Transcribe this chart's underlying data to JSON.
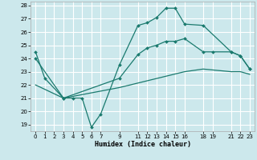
{
  "xlabel": "Humidex (Indice chaleur)",
  "bg_color": "#cce8ec",
  "grid_color": "#ffffff",
  "line_color": "#1a7a6e",
  "line1_x": [
    0,
    1,
    3,
    4,
    5,
    6,
    7,
    9,
    11,
    12,
    13,
    14,
    15,
    16,
    18,
    21,
    22,
    23
  ],
  "line1_y": [
    24.5,
    22.5,
    21.0,
    21.0,
    21.0,
    18.8,
    19.8,
    23.5,
    26.5,
    26.7,
    27.1,
    27.8,
    27.8,
    26.6,
    26.5,
    24.5,
    24.2,
    23.2
  ],
  "line2_x": [
    0,
    3,
    9,
    11,
    12,
    13,
    14,
    15,
    16,
    18,
    19,
    21,
    22,
    23
  ],
  "line2_y": [
    24.0,
    21.0,
    22.5,
    24.3,
    24.8,
    25.0,
    25.3,
    25.3,
    25.5,
    24.5,
    24.5,
    24.5,
    24.2,
    23.2
  ],
  "line3_x": [
    0,
    3,
    9,
    16,
    18,
    21,
    22,
    23
  ],
  "line3_y": [
    22.0,
    21.0,
    21.8,
    23.0,
    23.2,
    23.0,
    23.0,
    22.8
  ],
  "ylim": [
    18.5,
    28.3
  ],
  "xlim": [
    -0.5,
    23.5
  ],
  "yticks": [
    19,
    20,
    21,
    22,
    23,
    24,
    25,
    26,
    27,
    28
  ],
  "xticks": [
    0,
    1,
    2,
    3,
    4,
    5,
    6,
    7,
    9,
    11,
    12,
    13,
    14,
    15,
    16,
    18,
    19,
    21,
    22,
    23
  ]
}
